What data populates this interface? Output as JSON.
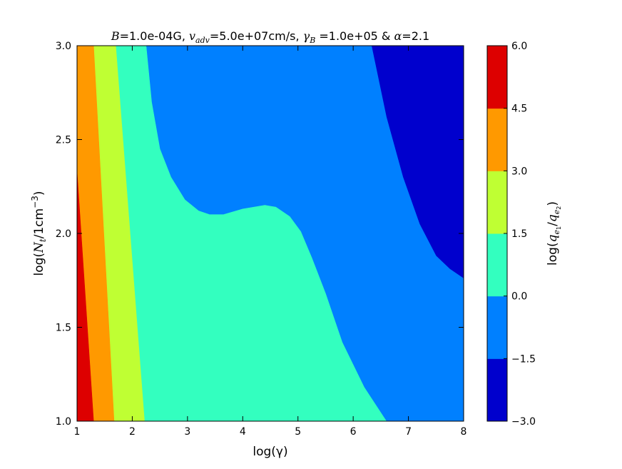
{
  "chart_data": {
    "type": "contour",
    "title": "B=1.0e-04G, v_adv=5.0e+07cm/s, γ_B=1.0e+05 & α=2.1",
    "title_parts": {
      "b_sym": "B",
      "b_val": "=1.0e-04G, ",
      "v_sym": "v",
      "v_sub": "adv",
      "v_val": "=5.0e+07cm/s, ",
      "g_sym": "γ",
      "g_sub": "B",
      "g_val": " =1.0e+05 & ",
      "a_sym": "α",
      "a_val": "=2.1"
    },
    "xlabel": "log(γ)",
    "ylabel": "log(N_t/1cm^-3)",
    "ylabel_parts": {
      "pre": "log(",
      "n_sym": "N",
      "n_sub": "t",
      "unit": "/1cm",
      "exp": "−3",
      "post": ")"
    },
    "colorbar_label": "log(q_e1/q_e2)",
    "colorbar_label_parts": {
      "pre": "log(",
      "q1": "q",
      "q1_sub": "e",
      "q1_subsub": "1",
      "slash": "/",
      "q2": "q",
      "q2_sub": "e",
      "q2_subsub": "2",
      "post": ")"
    },
    "xlim": [
      1,
      8
    ],
    "ylim": [
      1.0,
      3.0
    ],
    "xticks": [
      "1",
      "2",
      "3",
      "4",
      "5",
      "6",
      "7",
      "8"
    ],
    "yticks": [
      "1.0",
      "1.5",
      "2.0",
      "2.5",
      "3.0"
    ],
    "colorbar_levels": [
      "−3.0",
      "−1.5",
      "0.0",
      "1.5",
      "3.0",
      "4.5",
      "6.0"
    ],
    "level_colors": [
      "#0000cd",
      "#0080ff",
      "#33ffbf",
      "#bfff33",
      "#ff9900",
      "#dd0000"
    ],
    "regions": [
      {
        "level": "4.5 to 6.0",
        "color": "#dd0000",
        "boundary_upper": [
          [
            1.0,
            2.33
          ],
          [
            1.3,
            1.0
          ]
        ]
      },
      {
        "level": "3.0 to 4.5",
        "color": "#ff9900",
        "boundary_upper": [
          [
            1.3,
            3.0
          ],
          [
            1.67,
            1.0
          ]
        ]
      },
      {
        "level": "1.5 to 3.0",
        "color": "#bfff33",
        "boundary_upper": [
          [
            1.7,
            3.0
          ],
          [
            2.22,
            1.0
          ]
        ]
      },
      {
        "level": "0.0 to 1.5",
        "color": "#33ffbf",
        "boundary_upper": [
          [
            2.25,
            3.0
          ],
          [
            2.35,
            2.7
          ],
          [
            2.5,
            2.45
          ],
          [
            2.7,
            2.3
          ],
          [
            2.95,
            2.18
          ],
          [
            3.2,
            2.12
          ],
          [
            3.4,
            2.1
          ],
          [
            3.65,
            2.1
          ],
          [
            4.0,
            2.13
          ],
          [
            4.4,
            2.15
          ],
          [
            4.6,
            2.14
          ],
          [
            4.85,
            2.09
          ],
          [
            5.05,
            2.01
          ],
          [
            5.25,
            1.87
          ],
          [
            5.5,
            1.68
          ],
          [
            5.8,
            1.42
          ],
          [
            6.2,
            1.18
          ],
          [
            6.6,
            1.0
          ]
        ]
      },
      {
        "level": "−1.5 to 0.0",
        "color": "#0080ff",
        "boundary_upper": [
          [
            6.33,
            3.0
          ],
          [
            6.6,
            2.62
          ],
          [
            6.9,
            2.3
          ],
          [
            7.2,
            2.05
          ],
          [
            7.5,
            1.88
          ],
          [
            7.75,
            1.81
          ],
          [
            8.0,
            1.76
          ]
        ]
      },
      {
        "level": "−3.0 to −1.5",
        "color": "#0000cd",
        "boundary_upper": []
      }
    ]
  }
}
